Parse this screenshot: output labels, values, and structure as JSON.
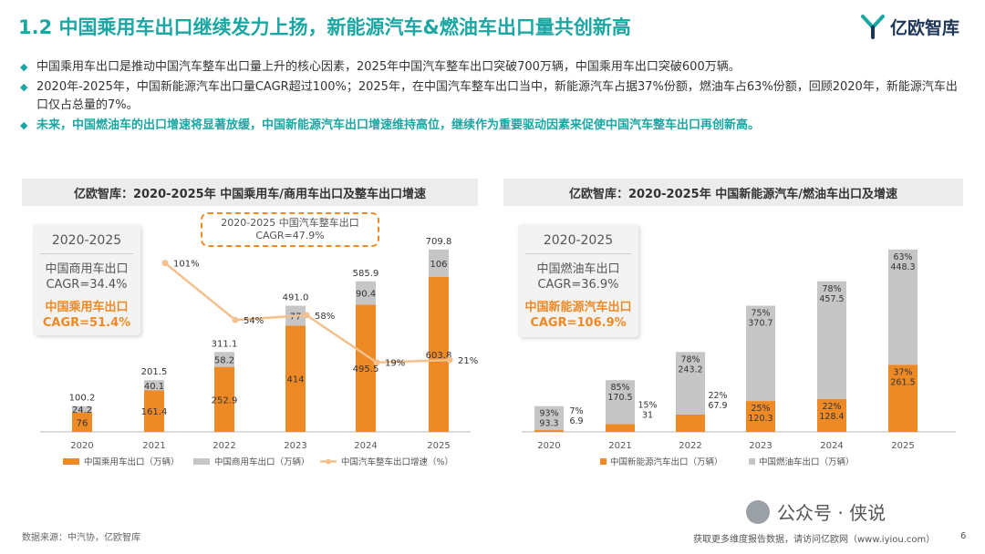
{
  "header": {
    "title": "1.2 中国乘用车出口继续发力上扬，新能源汽车&燃油车出口量共创新高",
    "logo_text": "亿欧智库"
  },
  "bullets": [
    "中国乘用车出口是推动中国汽车整车出口量上升的核心因素，2025年中国汽车整车出口突破700万辆，中国乘用车出口突破600万辆。",
    "2020年-2025年，中国新能源汽车出口量CAGR超过100%；2025年，在中国汽车整车出口当中，新能源汽车占据37%份额，燃油车占63%份额，回顾2020年，新能源汽车出口仅占总量的7%。",
    "未来，中国燃油车的出口增速将显著放缓，中国新能源汽车出口增速维持高位，继续作为重要驱动因素来促使中国汽车整车出口再创新高。"
  ],
  "left_panel": {
    "title": "亿欧智库：2020-2025年 中国乘用车/商用车出口及整车出口增速",
    "info": {
      "period": "2020-2025",
      "line1": "中国商用车出口",
      "line2": "CAGR=34.4%",
      "line3": "中国乘用车出口",
      "line4": "CAGR=51.4%"
    },
    "callout": {
      "line1": "2020-2025 中国汽车整车出口",
      "line2": "CAGR=47.9%"
    }
  },
  "right_panel": {
    "title": "亿欧智库：2020-2025年 中国新能源汽车/燃油车出口及增速",
    "info": {
      "period": "2020-2025",
      "line1": "中国燃油车出口",
      "line2": "CAGR=36.9%",
      "line3": "中国新能源汽车出口",
      "line4": "CAGR=106.9%"
    }
  },
  "chart_data": [
    {
      "type": "bar",
      "stacked": true,
      "categories": [
        "2020",
        "2021",
        "2022",
        "2023",
        "2024",
        "2025"
      ],
      "series": [
        {
          "name": "中国乘用车出口（万辆）",
          "values": [
            76.0,
            161.4,
            252.9,
            414.0,
            495.5,
            603.8
          ],
          "color": "#ee8a25"
        },
        {
          "name": "中国商用车出口（万辆）",
          "values": [
            24.2,
            40.1,
            58.2,
            77,
            90.4,
            106
          ],
          "color": "#c6c6c6"
        }
      ],
      "totals": [
        "100.2",
        "201.5",
        "311.1",
        "491.0",
        "585.9",
        "709.8"
      ],
      "line": {
        "name": "中国汽车整车出口增速（%）",
        "values": [
          101,
          54,
          58,
          19,
          21
        ],
        "labels": [
          "101%",
          "54%",
          "58%",
          "19%",
          "21%"
        ],
        "x_categories": [
          "2021",
          "2022",
          "2023",
          "2024",
          "2025"
        ],
        "color": "#f4c08c"
      },
      "legend_position": "bottom",
      "grid": false
    },
    {
      "type": "bar",
      "stacked": true,
      "categories": [
        "2020",
        "2021",
        "2022",
        "2023",
        "2024",
        "2025"
      ],
      "series": [
        {
          "name": "中国新能源汽车出口（万辆）",
          "values": [
            6.9,
            31,
            67.9,
            120.3,
            128.4,
            261.5
          ],
          "shares": [
            "7%",
            "15%",
            "22%",
            "25%",
            "22%",
            "37%"
          ],
          "color": "#ee8a25"
        },
        {
          "name": "中国燃油车出口（万辆）",
          "values": [
            93.3,
            170.5,
            243.2,
            370.7,
            457.5,
            448.3
          ],
          "shares": [
            "93%",
            "85%",
            "78%",
            "75%",
            "78%",
            "63%"
          ],
          "color": "#c6c6c6"
        }
      ],
      "legend_position": "bottom",
      "grid": false
    }
  ],
  "footer": {
    "source": "数据来源：中汽协，亿欧智库",
    "more": "获取更多维度报告数据，请访问亿欧网（www.iyiou.com）",
    "page": "6",
    "wechat": "公众号 · 侠说"
  }
}
